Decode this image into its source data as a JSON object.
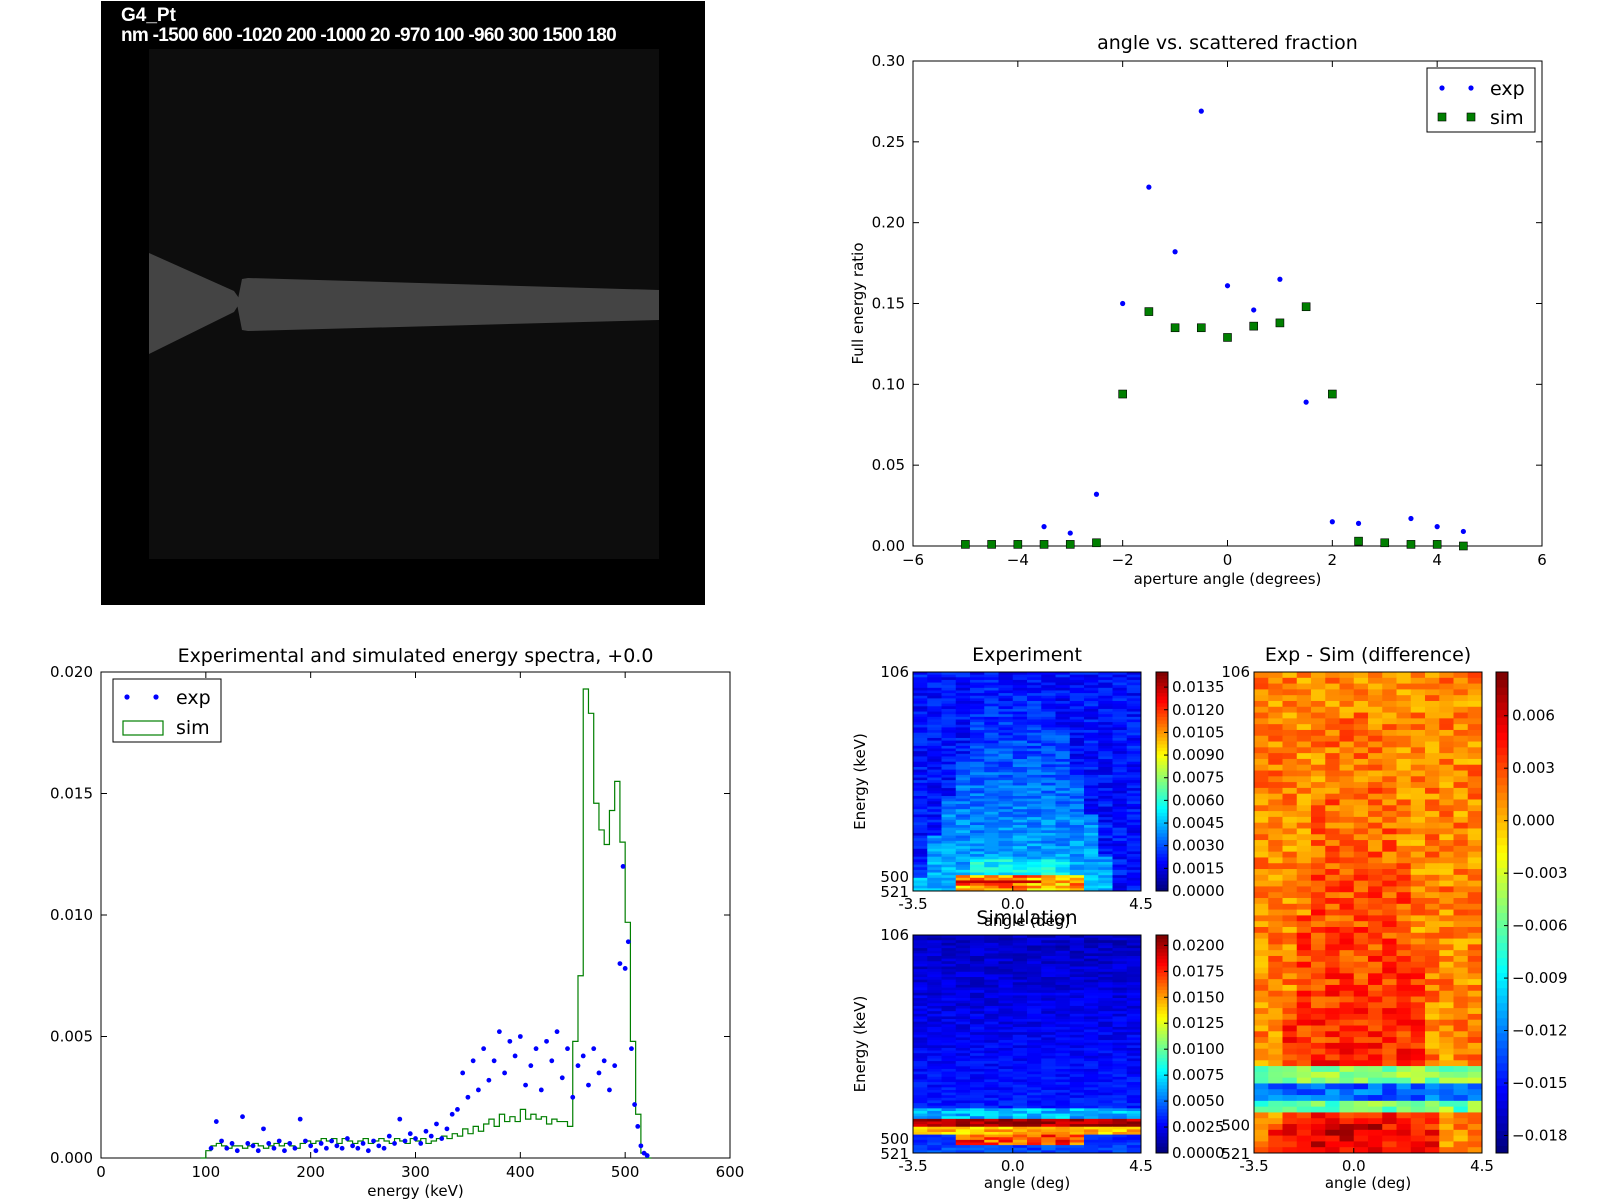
{
  "geometry_panel": {
    "title": "G4_Pt",
    "subtitle": "nm -1500 600 -1020 200 -1000 20 -970 100 -960 300 1500 180"
  },
  "chart_data": [
    {
      "id": "angle-vs-fraction",
      "type": "scatter",
      "title": "angle vs. scattered fraction",
      "xlabel": "aperture angle (degrees)",
      "ylabel": "Full energy ratio",
      "xlim": [
        -6,
        6
      ],
      "ylim": [
        0,
        0.3
      ],
      "xticks": [
        "−6",
        "−4",
        "−2",
        "0",
        "2",
        "4",
        "6"
      ],
      "yticks": [
        "0.00",
        "0.05",
        "0.10",
        "0.15",
        "0.20",
        "0.25",
        "0.30"
      ],
      "legend_position": "top-right",
      "series": [
        {
          "name": "exp",
          "marker": "dot",
          "color": "#0000ff",
          "x": [
            -3.5,
            -3.0,
            -2.5,
            -2.0,
            -1.5,
            -1.0,
            -0.5,
            0.0,
            0.5,
            1.0,
            1.5,
            2.0,
            2.5,
            3.5,
            4.0,
            4.5
          ],
          "y": [
            0.012,
            0.008,
            0.032,
            0.15,
            0.222,
            0.182,
            0.269,
            0.161,
            0.146,
            0.165,
            0.089,
            0.015,
            0.014,
            0.017,
            0.012,
            0.009
          ]
        },
        {
          "name": "sim",
          "marker": "square",
          "color": "#007f00",
          "x": [
            -5.0,
            -4.5,
            -4.0,
            -3.5,
            -3.0,
            -2.5,
            -2.0,
            -1.5,
            -1.0,
            -0.5,
            0.0,
            0.5,
            1.0,
            1.5,
            2.0,
            2.5,
            3.0,
            3.5,
            4.0,
            4.5
          ],
          "y": [
            0.001,
            0.001,
            0.001,
            0.001,
            0.001,
            0.002,
            0.094,
            0.145,
            0.135,
            0.135,
            0.129,
            0.136,
            0.138,
            0.148,
            0.094,
            0.003,
            0.002,
            0.001,
            0.001,
            0.0
          ]
        }
      ]
    },
    {
      "id": "energy-spectra",
      "type": "line",
      "title": "Experimental and simulated energy spectra, +0.0",
      "xlabel": "energy (keV)",
      "ylabel": "",
      "xlim": [
        0,
        600
      ],
      "ylim": [
        0,
        0.02
      ],
      "xticks": [
        "0",
        "100",
        "200",
        "300",
        "400",
        "500",
        "600"
      ],
      "yticks": [
        "0.000",
        "0.005",
        "0.010",
        "0.015",
        "0.020"
      ],
      "legend_position": "top-left",
      "series": [
        {
          "name": "exp",
          "marker": "dot",
          "color": "#0000ff",
          "x": [
            105,
            110,
            115,
            120,
            125,
            130,
            135,
            140,
            145,
            150,
            155,
            160,
            165,
            170,
            175,
            180,
            185,
            190,
            195,
            200,
            205,
            210,
            215,
            220,
            225,
            230,
            235,
            240,
            245,
            250,
            255,
            260,
            265,
            270,
            275,
            280,
            285,
            290,
            295,
            300,
            305,
            310,
            315,
            320,
            325,
            330,
            335,
            340,
            345,
            350,
            355,
            360,
            365,
            370,
            375,
            380,
            385,
            390,
            395,
            400,
            405,
            410,
            415,
            420,
            425,
            430,
            435,
            440,
            445,
            450,
            455,
            460,
            465,
            470,
            475,
            480,
            485,
            490,
            495,
            498,
            500,
            503,
            506,
            509,
            512,
            515,
            518,
            521
          ],
          "y": [
            0.0004,
            0.0015,
            0.0007,
            0.0004,
            0.0006,
            0.0003,
            0.0017,
            0.0006,
            0.0005,
            0.0003,
            0.0012,
            0.0006,
            0.0004,
            0.0007,
            0.0003,
            0.0006,
            0.0004,
            0.0016,
            0.0007,
            0.0005,
            0.0003,
            0.0006,
            0.0004,
            0.0007,
            0.0005,
            0.0004,
            0.0008,
            0.0005,
            0.0004,
            0.0006,
            0.0003,
            0.0007,
            0.0005,
            0.0004,
            0.0009,
            0.0006,
            0.0016,
            0.0007,
            0.001,
            0.0008,
            0.0006,
            0.0011,
            0.0009,
            0.0014,
            0.0008,
            0.0012,
            0.0018,
            0.002,
            0.0035,
            0.0025,
            0.004,
            0.0028,
            0.0045,
            0.0032,
            0.004,
            0.0052,
            0.0035,
            0.0048,
            0.0042,
            0.005,
            0.003,
            0.0038,
            0.0045,
            0.0028,
            0.0048,
            0.004,
            0.0052,
            0.0033,
            0.0045,
            0.0025,
            0.0038,
            0.0042,
            0.003,
            0.0045,
            0.0035,
            0.004,
            0.0028,
            0.0038,
            0.008,
            0.012,
            0.0078,
            0.0089,
            0.0045,
            0.0022,
            0.0013,
            0.0005,
            0.0002,
            0.0001
          ]
        },
        {
          "name": "sim",
          "marker": "step",
          "color": "#007f00",
          "x": [
            95,
            100,
            105,
            110,
            115,
            120,
            125,
            130,
            135,
            140,
            145,
            150,
            155,
            160,
            165,
            170,
            175,
            180,
            185,
            190,
            195,
            200,
            205,
            210,
            215,
            220,
            225,
            230,
            235,
            240,
            245,
            250,
            255,
            260,
            265,
            270,
            275,
            280,
            285,
            290,
            295,
            300,
            305,
            310,
            315,
            320,
            325,
            330,
            335,
            340,
            345,
            350,
            355,
            360,
            365,
            370,
            375,
            380,
            385,
            390,
            395,
            400,
            405,
            410,
            415,
            420,
            425,
            430,
            435,
            440,
            445,
            450,
            455,
            460,
            465,
            470,
            475,
            480,
            485,
            490,
            495,
            500,
            505,
            510,
            515,
            520
          ],
          "y": [
            0.0,
            0.0003,
            0.0005,
            0.0006,
            0.0005,
            0.0004,
            0.0005,
            0.0005,
            0.0004,
            0.0005,
            0.0006,
            0.0005,
            0.0004,
            0.0005,
            0.0006,
            0.0005,
            0.0006,
            0.0005,
            0.0004,
            0.0006,
            0.0007,
            0.0006,
            0.0007,
            0.0008,
            0.0007,
            0.0008,
            0.0006,
            0.0008,
            0.0007,
            0.0006,
            0.0007,
            0.0008,
            0.0006,
            0.0007,
            0.0008,
            0.0007,
            0.0006,
            0.0008,
            0.0007,
            0.0006,
            0.0008,
            0.0007,
            0.0008,
            0.0006,
            0.0007,
            0.0008,
            0.0009,
            0.0008,
            0.001,
            0.0009,
            0.0012,
            0.001,
            0.0013,
            0.0011,
            0.0014,
            0.0016,
            0.0013,
            0.0018,
            0.0015,
            0.0017,
            0.0015,
            0.002,
            0.0016,
            0.0018,
            0.0016,
            0.0017,
            0.0014,
            0.0016,
            0.0015,
            0.0015,
            0.0013,
            0.0048,
            0.0075,
            0.0193,
            0.0183,
            0.0146,
            0.0135,
            0.0129,
            0.0143,
            0.0155,
            0.013,
            0.0097,
            0.0048,
            0.0018,
            0.0002,
            0.0
          ]
        }
      ]
    },
    {
      "id": "heatmap-experiment",
      "type": "heatmap",
      "title": "Experiment",
      "xlabel": "angle (deg)",
      "ylabel": "Energy (keV)",
      "xticks": [
        "-3.5",
        "0.0",
        "4.5"
      ],
      "yticks": [
        "106",
        "500",
        "521"
      ],
      "x_range": [
        -3.5,
        4.5
      ],
      "y_range": [
        106,
        521
      ],
      "colorbar": {
        "min": 0.0,
        "max": 0.0145,
        "ticks": [
          "0.0000",
          "0.0015",
          "0.0030",
          "0.0045",
          "0.0060",
          "0.0075",
          "0.0090",
          "0.0105",
          "0.0120",
          "0.0135"
        ]
      }
    },
    {
      "id": "heatmap-simulation",
      "type": "heatmap",
      "title": "Simulation",
      "xlabel": "angle (deg)",
      "ylabel": "Energy (keV)",
      "xticks": [
        "-3.5",
        "0.0",
        "4.5"
      ],
      "yticks": [
        "106",
        "500",
        "521"
      ],
      "x_range": [
        -3.5,
        4.5
      ],
      "y_range": [
        106,
        521
      ],
      "colorbar": {
        "min": 0.0,
        "max": 0.021,
        "ticks": [
          "0.0000",
          "0.0025",
          "0.0050",
          "0.0075",
          "0.0100",
          "0.0125",
          "0.0150",
          "0.0175",
          "0.0200"
        ]
      }
    },
    {
      "id": "heatmap-difference",
      "type": "heatmap",
      "title": "Exp - Sim (difference)",
      "xlabel": "angle (deg)",
      "ylabel": "Energy (keV)",
      "xticks": [
        "-3.5",
        "0.0",
        "4.5"
      ],
      "yticks": [
        "106",
        "500",
        "521"
      ],
      "x_range": [
        -3.5,
        4.5
      ],
      "y_range": [
        106,
        521
      ],
      "colorbar": {
        "min": -0.019,
        "max": 0.0085,
        "ticks": [
          "−0.018",
          "−0.015",
          "−0.012",
          "−0.009",
          "−0.006",
          "−0.003",
          "0.000",
          "0.003",
          "0.006"
        ]
      }
    }
  ]
}
